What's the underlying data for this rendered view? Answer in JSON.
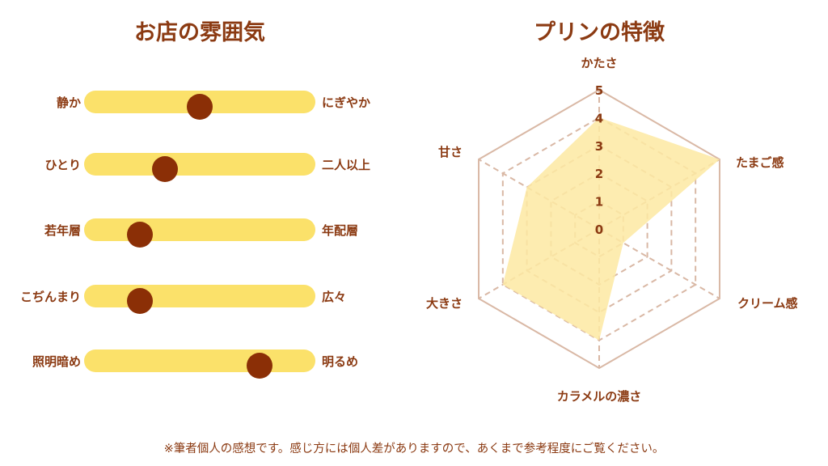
{
  "left_title": "お店の雰囲気",
  "right_title": "プリンの特徴",
  "atmosphere": [
    {
      "left": "静か",
      "right": "にぎやか",
      "value": 0.5
    },
    {
      "left": "ひとり",
      "right": "二人以上",
      "value": 0.35
    },
    {
      "left": "若年層",
      "right": "年配層",
      "value": 0.24
    },
    {
      "left": "こぢんまり",
      "right": "広々",
      "value": 0.24
    },
    {
      "left": "照明暗め",
      "right": "明るめ",
      "value": 0.76
    }
  ],
  "colors": {
    "text": "#8b3a12",
    "track": "#fbe16a",
    "knob": "#8b2f06",
    "radar_fill": "#fde9a2",
    "radar_line": "#d9b8a5"
  },
  "footnote": "※筆者個人の感想です。感じ方には個人差がありますので、あくまで参考程度にご覧ください。",
  "chart_data": {
    "type": "radar",
    "title": "プリンの特徴",
    "axes": [
      "かたさ",
      "たまご感",
      "クリーム感",
      "カラメルの濃さ",
      "大きさ",
      "甘さ"
    ],
    "values": [
      4,
      5,
      1,
      4,
      4,
      3
    ],
    "rlim": [
      0,
      5
    ],
    "ticks": [
      "0",
      "1",
      "2",
      "3",
      "4",
      "5"
    ],
    "grid": true
  }
}
